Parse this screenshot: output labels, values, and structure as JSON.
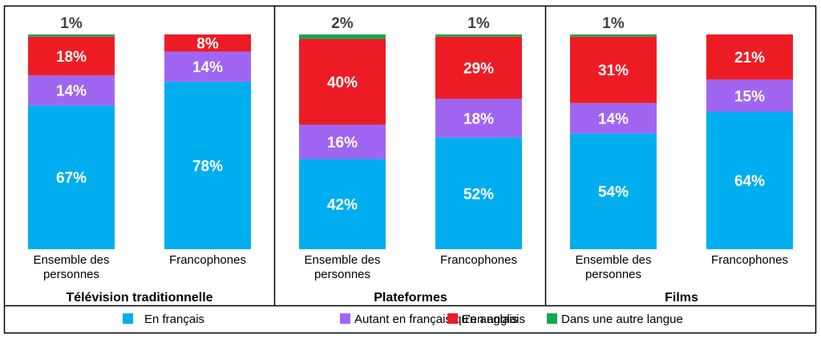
{
  "chart_data": [
    {
      "type": "bar",
      "stacked": true,
      "title": "Télévision traditionnelle",
      "categories": [
        [
          "Ensemble des",
          "personnes"
        ],
        [
          "Francophones"
        ]
      ],
      "series": [
        {
          "name": "En français",
          "values": [
            67,
            78
          ],
          "labels": [
            "67%",
            "78%"
          ]
        },
        {
          "name": "Autant en français qu'en anglais",
          "values": [
            14,
            14
          ],
          "labels": [
            "14%",
            "14%"
          ]
        },
        {
          "name": "En anglais",
          "values": [
            18,
            8
          ],
          "labels": [
            "18%",
            "8%"
          ]
        },
        {
          "name": "Dans une autre langue",
          "values": [
            1,
            0
          ],
          "labels": [
            "1%",
            ""
          ]
        }
      ],
      "unit": "%",
      "ylim": [
        0,
        100
      ]
    },
    {
      "type": "bar",
      "stacked": true,
      "title": "Plateformes",
      "categories": [
        [
          "Ensemble des",
          "personnes"
        ],
        [
          "Francophones"
        ]
      ],
      "series": [
        {
          "name": "En français",
          "values": [
            42,
            52
          ],
          "labels": [
            "42%",
            "52%"
          ]
        },
        {
          "name": "Autant en français qu'en anglais",
          "values": [
            16,
            18
          ],
          "labels": [
            "16%",
            "18%"
          ]
        },
        {
          "name": "En anglais",
          "values": [
            40,
            29
          ],
          "labels": [
            "40%",
            "29%"
          ]
        },
        {
          "name": "Dans une autre langue",
          "values": [
            2,
            1
          ],
          "labels": [
            "2%",
            "1%"
          ]
        }
      ],
      "unit": "%",
      "ylim": [
        0,
        100
      ]
    },
    {
      "type": "bar",
      "stacked": true,
      "title": "Films",
      "categories": [
        [
          "Ensemble des",
          "personnes"
        ],
        [
          "Francophones"
        ]
      ],
      "series": [
        {
          "name": "En français",
          "values": [
            54,
            64
          ],
          "labels": [
            "54%",
            "64%"
          ]
        },
        {
          "name": "Autant en français qu'en anglais",
          "values": [
            14,
            15
          ],
          "labels": [
            "14%",
            "15%"
          ]
        },
        {
          "name": "En anglais",
          "values": [
            31,
            21
          ],
          "labels": [
            "31%",
            "21%"
          ]
        },
        {
          "name": "Dans une autre langue",
          "values": [
            1,
            0
          ],
          "labels": [
            "1%",
            ""
          ]
        }
      ],
      "unit": "%",
      "ylim": [
        0,
        100
      ]
    }
  ],
  "legend": {
    "placement": "bottom",
    "items": [
      {
        "label": "En français",
        "color": "#00AEEF"
      },
      {
        "label": "Autant en français qu'en anglais",
        "color": "#A066F2"
      },
      {
        "label": "En anglais",
        "color": "#ED1C24"
      },
      {
        "label": "Dans une autre langue",
        "color": "#13A84A"
      }
    ]
  },
  "colors": {
    "segment_label": "#ffffff",
    "top_label": "#404040",
    "text": "#000000",
    "border": "#000000"
  }
}
